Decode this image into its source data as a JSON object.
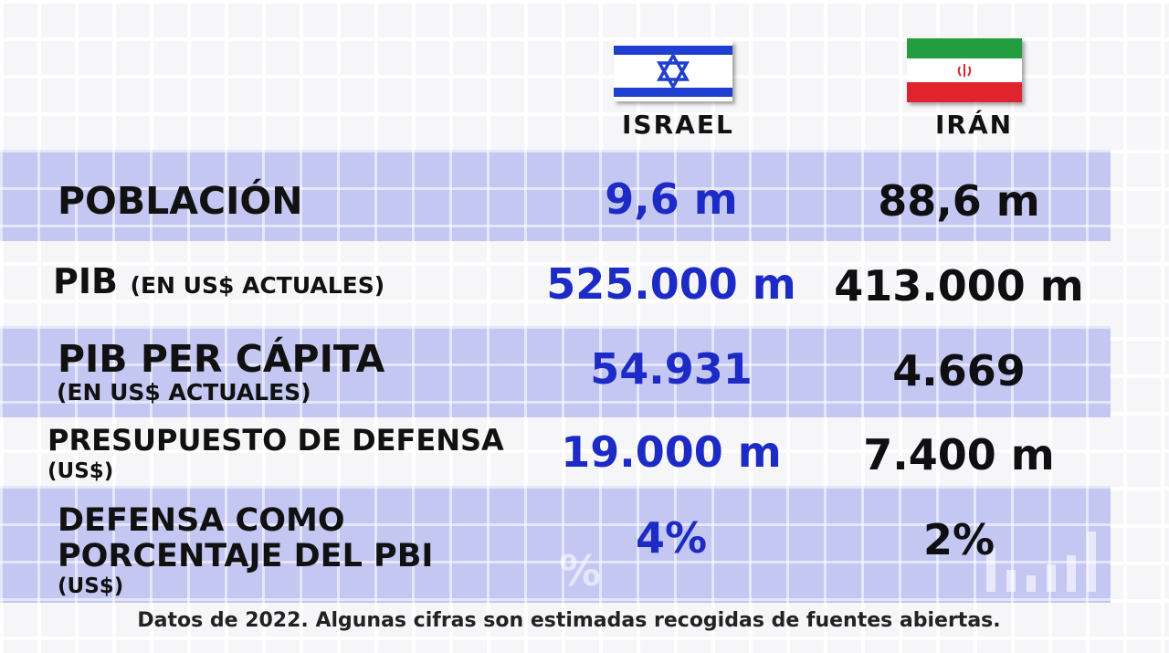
{
  "header": {
    "israel_label": "ISRAEL",
    "iran_label": "IRÁN"
  },
  "rows": [
    {
      "label": "POBLACIÓN",
      "israel": "9,6 m",
      "iran": "88,6 m"
    },
    {
      "label": "PIB",
      "sublabel": "(EN US$ ACTUALES)",
      "israel": "525.000 m",
      "iran": "413.000 m"
    },
    {
      "label": "PIB PER CÁPITA",
      "sublabel": "(EN US$ ACTUALES)",
      "israel": "54.931",
      "iran": "4.669"
    },
    {
      "label": "PRESUPUESTO DE DEFENSA",
      "sublabel": "(US$)",
      "israel": "19.000 m",
      "iran": "7.400 m"
    },
    {
      "label_line1": "DEFENSA COMO",
      "label_line2": "PORCENTAJE DEL PBI",
      "sublabel": "(US$)",
      "israel": "4%",
      "iran": "2%"
    }
  ],
  "footnote": "Datos de 2022. Algunas cifras son estimadas recogidas de fuentes abiertas.",
  "colors": {
    "israel_values": "#1d2bc6",
    "iran_values": "#0f0f12",
    "band": "#c3c7f2",
    "israel_flag_blue": "#1f3fd0",
    "iran_flag_green": "#229d3f",
    "iran_flag_red": "#e0242e"
  }
}
